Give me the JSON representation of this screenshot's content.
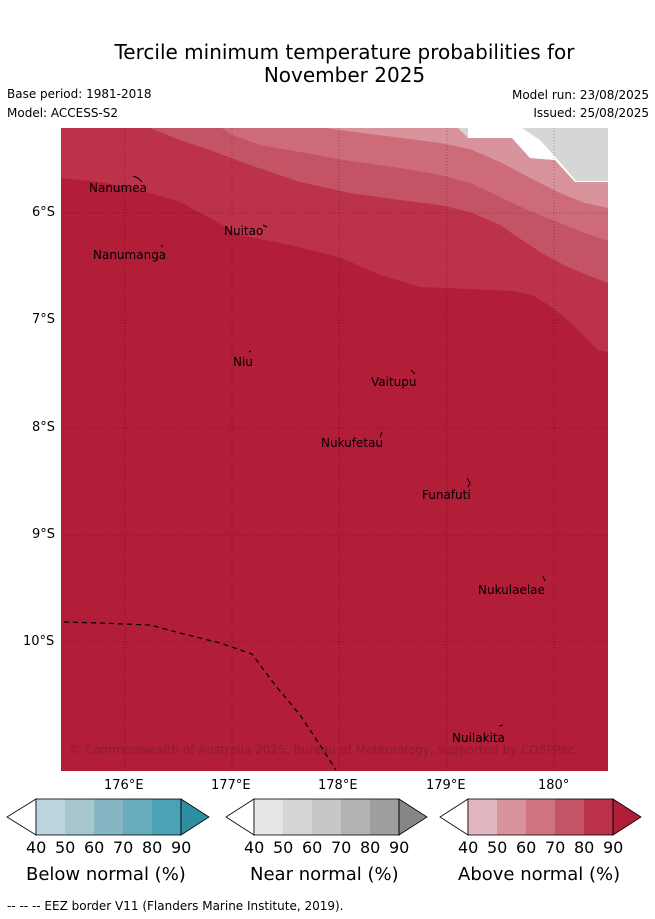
{
  "title": "Tercile minimum temperature probabilities for\nNovember 2025",
  "title_line1": "Tercile minimum temperature probabilities for",
  "title_line2": "November 2025",
  "meta": {
    "base_period": "Base period: 1981-2018",
    "model": "Model: ACCESS-S2",
    "model_run": "Model run: 23/08/2025",
    "issued": "Issued: 25/08/2025"
  },
  "map": {
    "latitude_labels": [
      "6°S",
      "7°S",
      "8°S",
      "9°S",
      "10°S"
    ],
    "longitude_labels": [
      "176°E",
      "177°E",
      "178°E",
      "179°E",
      "180°"
    ],
    "places": [
      {
        "name": "Nanumea"
      },
      {
        "name": "Nuitao"
      },
      {
        "name": "Nanumanga"
      },
      {
        "name": "Niu"
      },
      {
        "name": "Vaitupu"
      },
      {
        "name": "Nukufetau"
      },
      {
        "name": "Funafuti"
      },
      {
        "name": "Nukulaelae"
      },
      {
        "name": "Nuilakita"
      }
    ],
    "credit": "© Commonwealth of Australia 2025, Bureau of Meteorology, supported by COSPPac",
    "colors": {
      "above_90": "#b21d38",
      "above_80": "#bc3349",
      "above_70": "#c45465",
      "above_60": "#cd6c78",
      "above_50": "#d9939d",
      "near_50": "#d6d6d6"
    }
  },
  "colorbars": [
    {
      "title": "Below normal (%)",
      "ticks": [
        "40",
        "50",
        "60",
        "70",
        "80",
        "90"
      ],
      "colors": [
        "#bcd4dc",
        "#a5c7cd",
        "#86b6c4",
        "#68abbc",
        "#4aa2b5",
        "#2e8ea3"
      ]
    },
    {
      "title": "Near normal (%)",
      "ticks": [
        "40",
        "50",
        "60",
        "70",
        "80",
        "90"
      ],
      "colors": [
        "#e6e6e6",
        "#d6d6d6",
        "#c7c7c7",
        "#b3b3b3",
        "#9e9e9e",
        "#868686"
      ]
    },
    {
      "title": "Above normal (%)",
      "ticks": [
        "40",
        "50",
        "60",
        "70",
        "80",
        "90"
      ],
      "colors": [
        "#e2b6be",
        "#d9939d",
        "#cf747f",
        "#c45465",
        "#bc3349",
        "#b21d38"
      ]
    }
  ],
  "footer": "--  --  -- EEZ border V11 (Flanders Marine Institute, 2019)."
}
